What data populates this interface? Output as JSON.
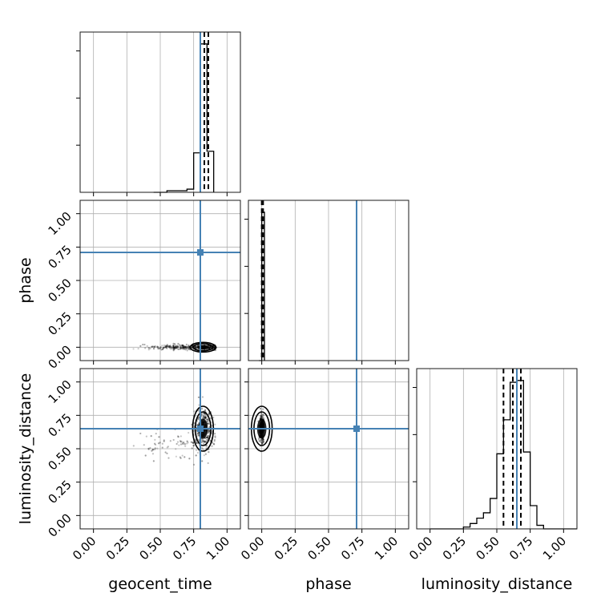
{
  "chart_data": {
    "type": "corner",
    "parameters": [
      "geocent_time",
      "phase",
      "luminosity_distance"
    ],
    "axis_label_text": {
      "bottom": [
        "geocent_time",
        "phase",
        "luminosity_distance"
      ],
      "left": [
        "phase",
        "luminosity_distance"
      ]
    },
    "range": [
      -0.1,
      1.1
    ],
    "ticks": [
      0.0,
      0.25,
      0.5,
      0.75,
      1.0
    ],
    "tick_labels": [
      "0.00",
      "0.25",
      "0.50",
      "0.75",
      "1.00"
    ],
    "truths": [
      0.8,
      0.71,
      0.65
    ],
    "truth_color": "#4682b4",
    "quantiles": [
      [
        0.8,
        0.83,
        0.86
      ],
      [
        0.0,
        0.005,
        0.01
      ],
      [
        0.55,
        0.62,
        0.68
      ]
    ],
    "histograms": [
      {
        "param": "geocent_time",
        "bin_edges": [
          0.45,
          0.55,
          0.7,
          0.75,
          0.8,
          0.85,
          0.9
        ],
        "counts": [
          0.0,
          0.01,
          0.02,
          0.25,
          0.94,
          0.26
        ]
      },
      {
        "param": "phase",
        "bin_edges": [
          -0.02,
          0.0,
          0.02
        ],
        "counts": [
          0.0,
          1.0
        ]
      },
      {
        "param": "luminosity_distance",
        "bin_edges": [
          0.0,
          0.25,
          0.3,
          0.35,
          0.4,
          0.45,
          0.5,
          0.55,
          0.6,
          0.65,
          0.7,
          0.75,
          0.8,
          0.85,
          0.9,
          1.1
        ],
        "counts": [
          0.0,
          0.01,
          0.03,
          0.06,
          0.09,
          0.17,
          0.42,
          0.61,
          0.82,
          0.83,
          0.43,
          0.13,
          0.02,
          0.0,
          0.0
        ]
      }
    ],
    "joint": [
      {
        "x": "geocent_time",
        "y": "phase",
        "cloud": {
          "x_range": [
            0.22,
            0.92
          ],
          "y_center": 0.0,
          "y_spread": 0.01
        },
        "contour_center": [
          0.82,
          0.0
        ]
      },
      {
        "x": "geocent_time",
        "y": "luminosity_distance",
        "cloud": {
          "x_range": [
            0.22,
            0.92
          ],
          "y_range": [
            0.28,
            0.98
          ]
        },
        "contour_center": [
          0.82,
          0.65
        ]
      },
      {
        "x": "phase",
        "y": "luminosity_distance",
        "cloud": {
          "x_center": 0.0,
          "y_range": [
            0.5,
            0.82
          ]
        },
        "contour_center": [
          0.0,
          0.65
        ]
      }
    ],
    "grid": true
  }
}
